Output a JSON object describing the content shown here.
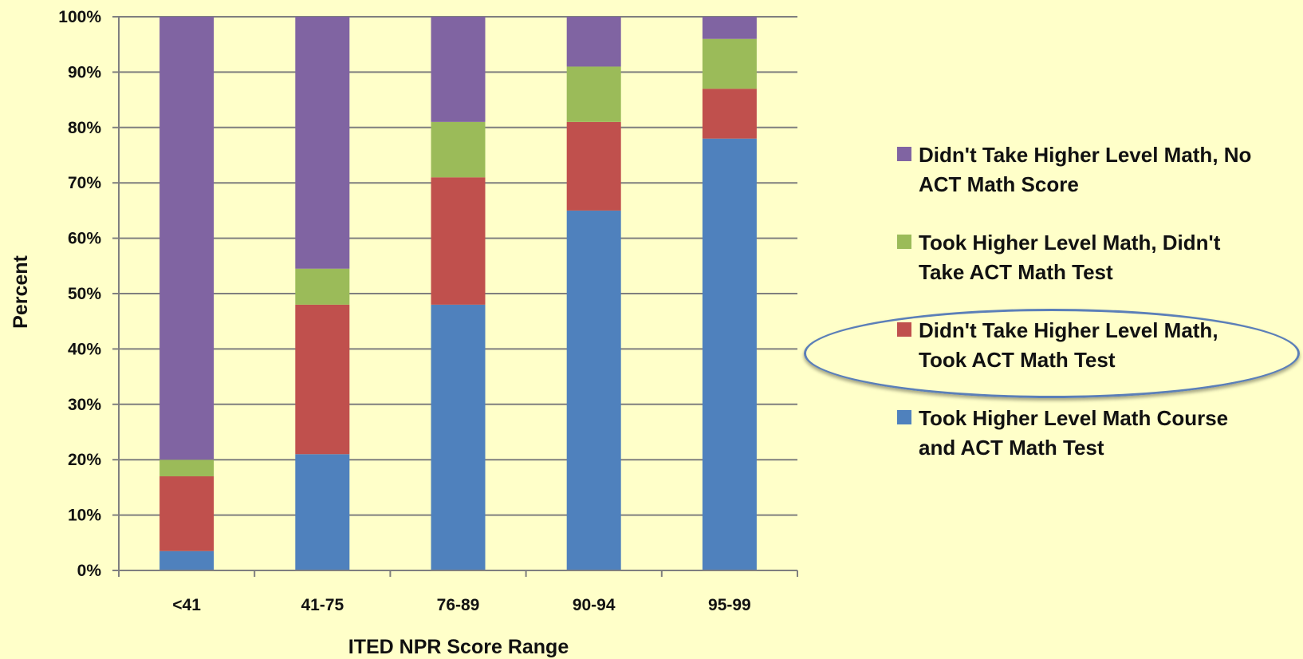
{
  "chart_data": {
    "type": "bar",
    "stacked": true,
    "categories": [
      "<41",
      "41-75",
      "76-89",
      "90-94",
      "95-99"
    ],
    "series": [
      {
        "name": "Took Higher Level Math Course and ACT Math Test",
        "color": "#4f81bd",
        "values": [
          3.5,
          21,
          48,
          65,
          78
        ]
      },
      {
        "name": "Didn't Take Higher Level Math, Took ACT Math Test",
        "color": "#c0504d",
        "values": [
          13.5,
          27,
          23,
          16,
          9
        ]
      },
      {
        "name": "Took Higher Level Math, Didn't Take ACT Math Test",
        "color": "#9bbb59",
        "values": [
          3,
          6.5,
          10,
          10,
          9
        ]
      },
      {
        "name": "Didn't Take Higher Level Math, No ACT Math Score",
        "color": "#8064a2",
        "values": [
          80,
          45.5,
          19,
          9,
          4
        ]
      }
    ],
    "legend_order": [
      3,
      2,
      1,
      0
    ],
    "highlighted_series": 1,
    "xlabel": "ITED NPR Score Range",
    "ylabel": "Percent",
    "ylim": [
      0,
      100
    ],
    "yticks": [
      "0%",
      "10%",
      "20%",
      "30%",
      "40%",
      "50%",
      "60%",
      "70%",
      "80%",
      "90%",
      "100%"
    ],
    "grid": true,
    "legend_position": "right"
  }
}
